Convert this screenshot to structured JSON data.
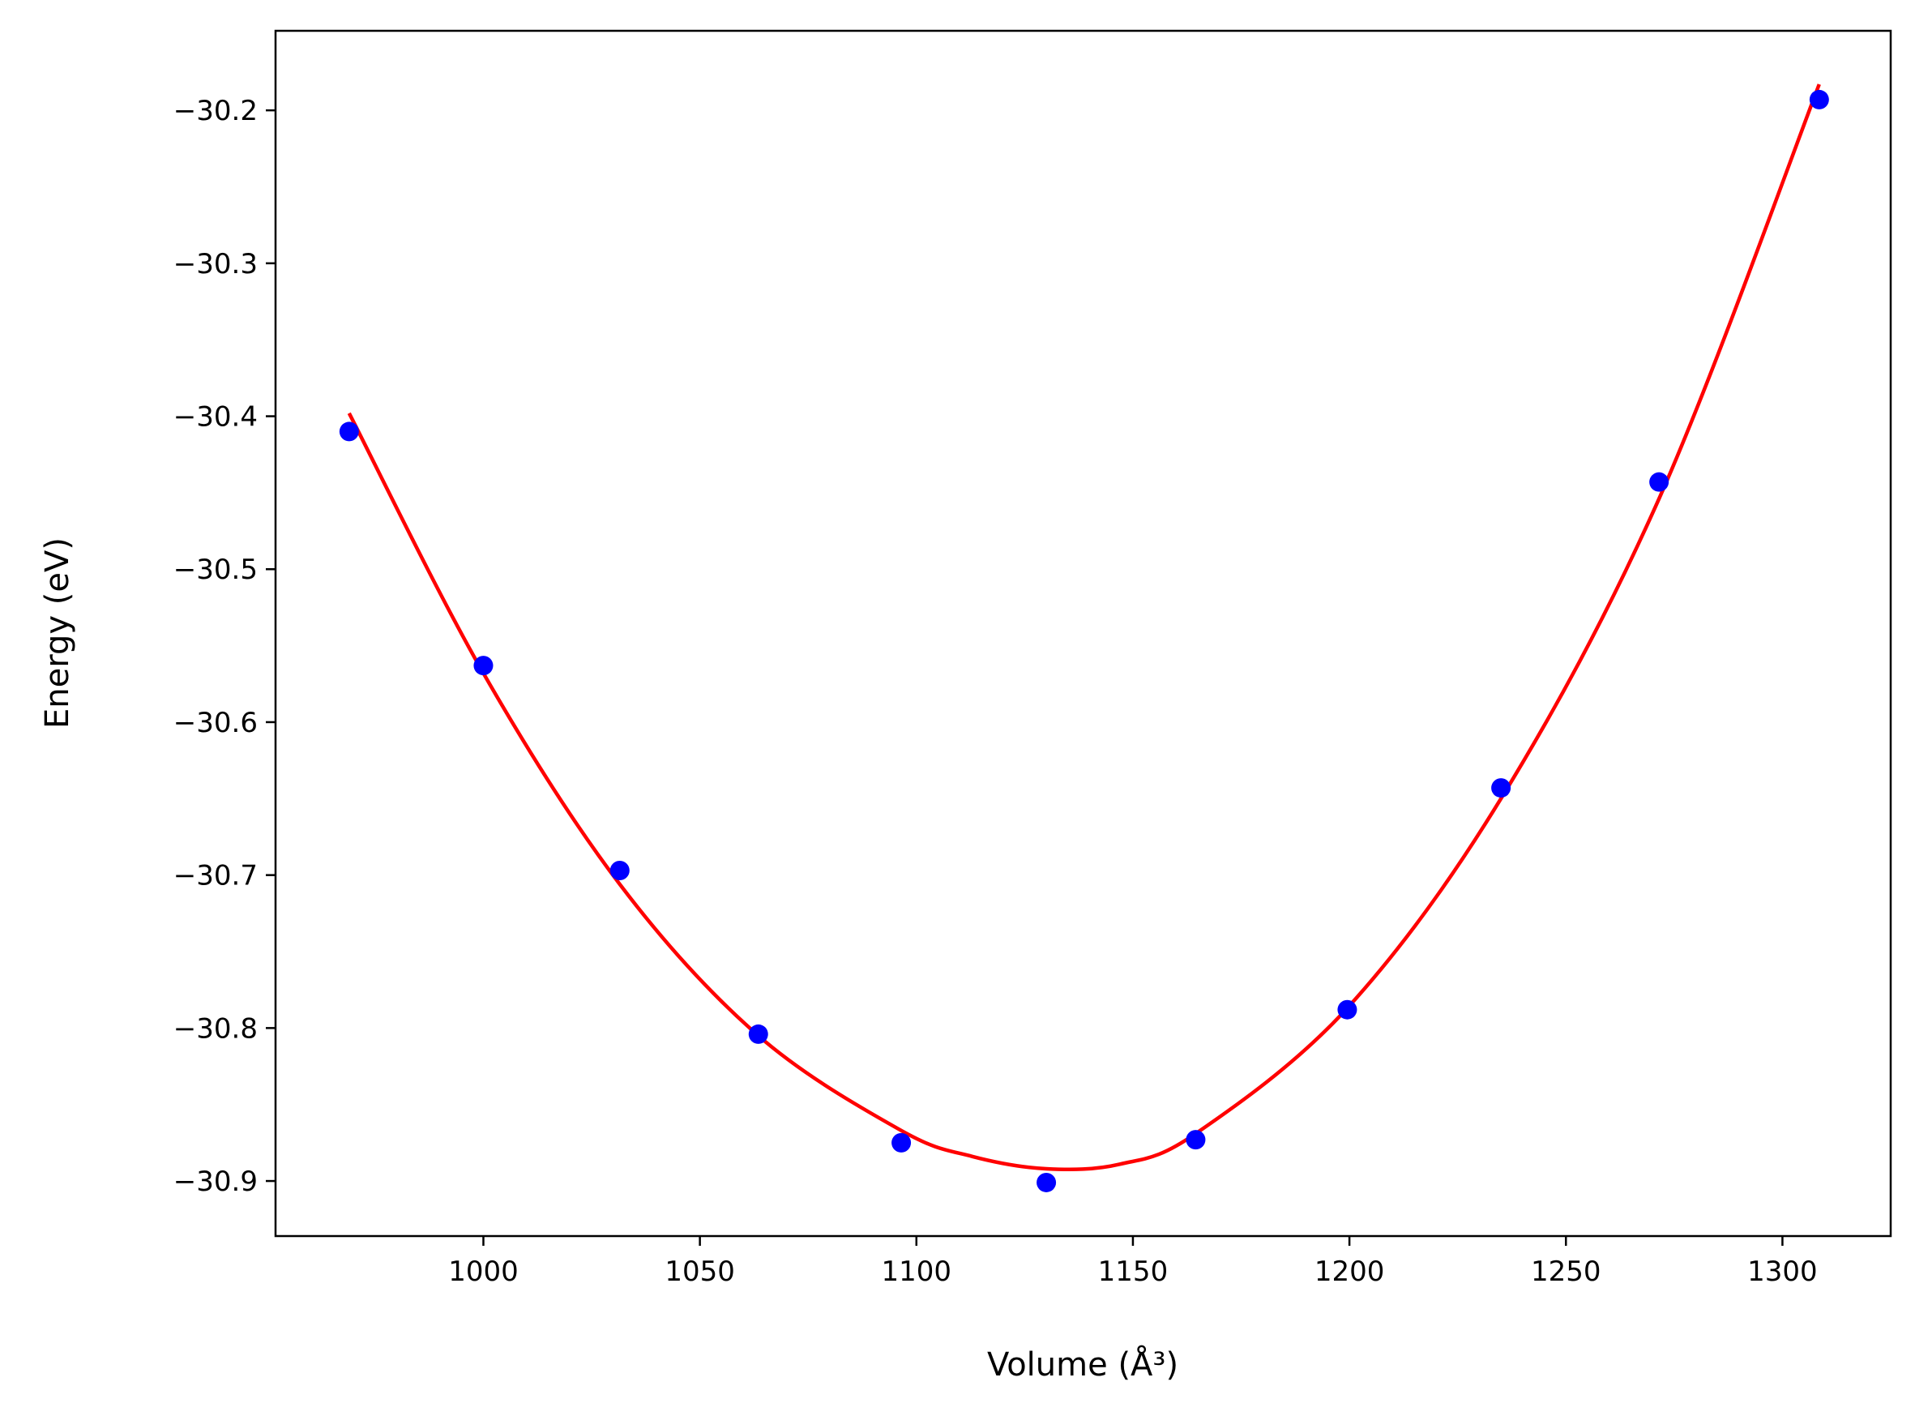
{
  "chart_data": {
    "type": "scatter",
    "xlabel": "Volume (Å³)",
    "ylabel": "Energy (eV)",
    "xlim": [
      952,
      1325
    ],
    "ylim": [
      -30.936,
      -30.148
    ],
    "xticks": [
      1000,
      1050,
      1100,
      1150,
      1200,
      1250,
      1300
    ],
    "yticks": [
      -30.2,
      -30.3,
      -30.4,
      -30.5,
      -30.6,
      -30.7,
      -30.8,
      -30.9
    ],
    "xtick_labels": [
      "1000",
      "1050",
      "1100",
      "1150",
      "1200",
      "1250",
      "1300"
    ],
    "ytick_labels": [
      "−30.2",
      "−30.3",
      "−30.4",
      "−30.5",
      "−30.6",
      "−30.7",
      "−30.8",
      "−30.9"
    ],
    "grid": false,
    "series": [
      {
        "kind": "points",
        "color": "#0000ff",
        "x": [
          969,
          1000,
          1031.5,
          1063.5,
          1096.5,
          1130,
          1164.5,
          1199.5,
          1235,
          1271.5,
          1308.5
        ],
        "y": [
          -30.41,
          -30.563,
          -30.697,
          -30.804,
          -30.875,
          -30.901,
          -30.873,
          -30.788,
          -30.643,
          -30.443,
          -30.193
        ]
      },
      {
        "kind": "fit-curve",
        "color": "#ff0000",
        "x": [
          969,
          1000,
          1031.5,
          1063.5,
          1096.5,
          1113,
          1130,
          1147,
          1164.5,
          1199.5,
          1235,
          1271.5,
          1308.5
        ],
        "y": [
          -30.398,
          -30.568,
          -30.706,
          -30.805,
          -30.867,
          -30.884,
          -30.892,
          -30.889,
          -30.869,
          -30.787,
          -30.65,
          -30.454,
          -30.183
        ]
      }
    ]
  }
}
